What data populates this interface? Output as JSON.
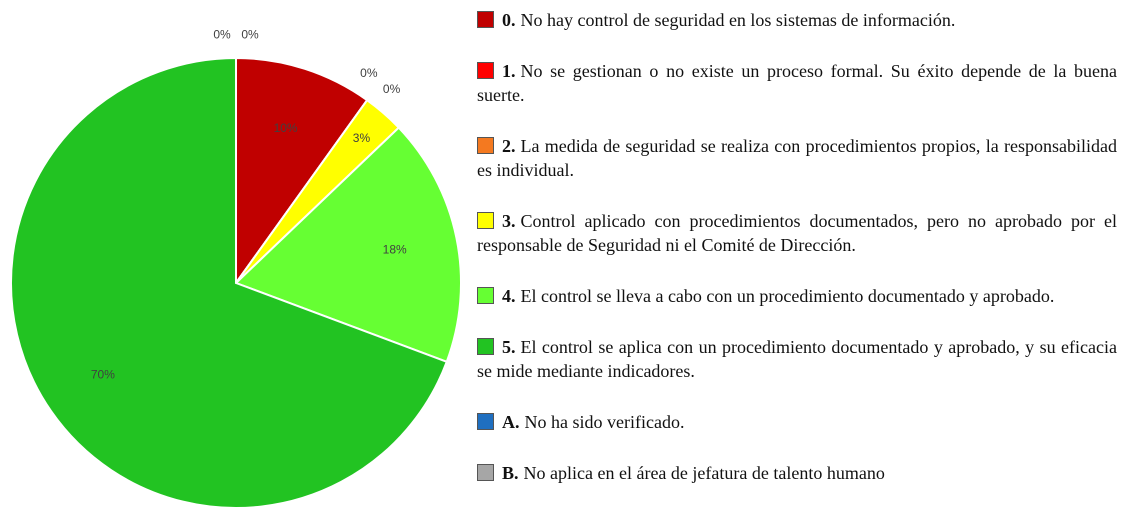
{
  "chart_data": {
    "type": "pie",
    "codes": [
      "0.",
      "1.",
      "2.",
      "3.",
      "4.",
      "5.",
      "A.",
      "B."
    ],
    "categories": [
      "No hay control de seguridad en los sistemas de información.",
      "No se gestionan o no existe un proceso formal. Su éxito depende de la buena suerte.",
      "La medida de seguridad se realiza con procedimientos propios, la responsabilidad es individual.",
      "Control aplicado con procedimientos documentados, pero no aprobado por el responsable de Seguridad ni el Comité de Dirección.",
      "El control se lleva a cabo con un procedimiento documentado y aprobado.",
      "El control se aplica con un procedimiento documentado y aprobado, y su eficacia se mide mediante indicadores.",
      "No ha sido verificado.",
      "No aplica en el área de jefatura de talento humano"
    ],
    "values": [
      10,
      0,
      0,
      3,
      18,
      70,
      0,
      0
    ],
    "value_labels": [
      "10%",
      "0%",
      "0%",
      "3%",
      "18%",
      "70%",
      "0%",
      "0%"
    ],
    "colors": [
      "#c00000",
      "#ff0000",
      "#f47920",
      "#ffff00",
      "#66ff33",
      "#22c322",
      "#1f6fc0",
      "#a6a6a6"
    ]
  }
}
